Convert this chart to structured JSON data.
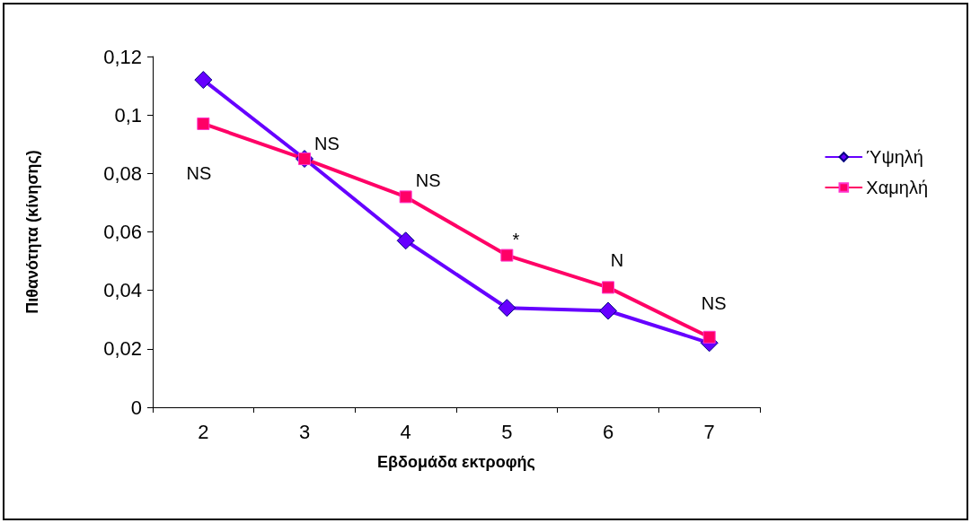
{
  "chart_data": {
    "type": "line",
    "xlabel": "Εβδομάδα εκτροφής",
    "ylabel": "Πιθανότητα (κίνησης)",
    "categories": [
      "2",
      "3",
      "4",
      "5",
      "6",
      "7"
    ],
    "series": [
      {
        "name": "Ύψηλή",
        "color": "#6600ff",
        "marker": "diamond",
        "values": [
          0.112,
          0.085,
          0.057,
          0.034,
          0.033,
          0.022
        ]
      },
      {
        "name": "Χαμηλή",
        "color": "#ff0066",
        "marker": "square",
        "values": [
          0.097,
          0.085,
          0.072,
          0.052,
          0.041,
          0.024
        ]
      }
    ],
    "ylim": [
      0,
      0.12
    ],
    "yticks": [
      0,
      {
        "value": 0.02,
        "label": "0,02"
      },
      {
        "value": 0.04,
        "label": "0,04"
      },
      {
        "value": 0.06,
        "label": "0,06"
      },
      {
        "value": 0.08,
        "label": "0,08"
      },
      {
        "value": 0.1,
        "label": "0,1"
      },
      {
        "value": 0.12,
        "label": "0,12"
      }
    ],
    "annotations": [
      "NS",
      "NS",
      "NS",
      "*",
      "N",
      "NS"
    ],
    "grid": false,
    "legend": "right"
  }
}
